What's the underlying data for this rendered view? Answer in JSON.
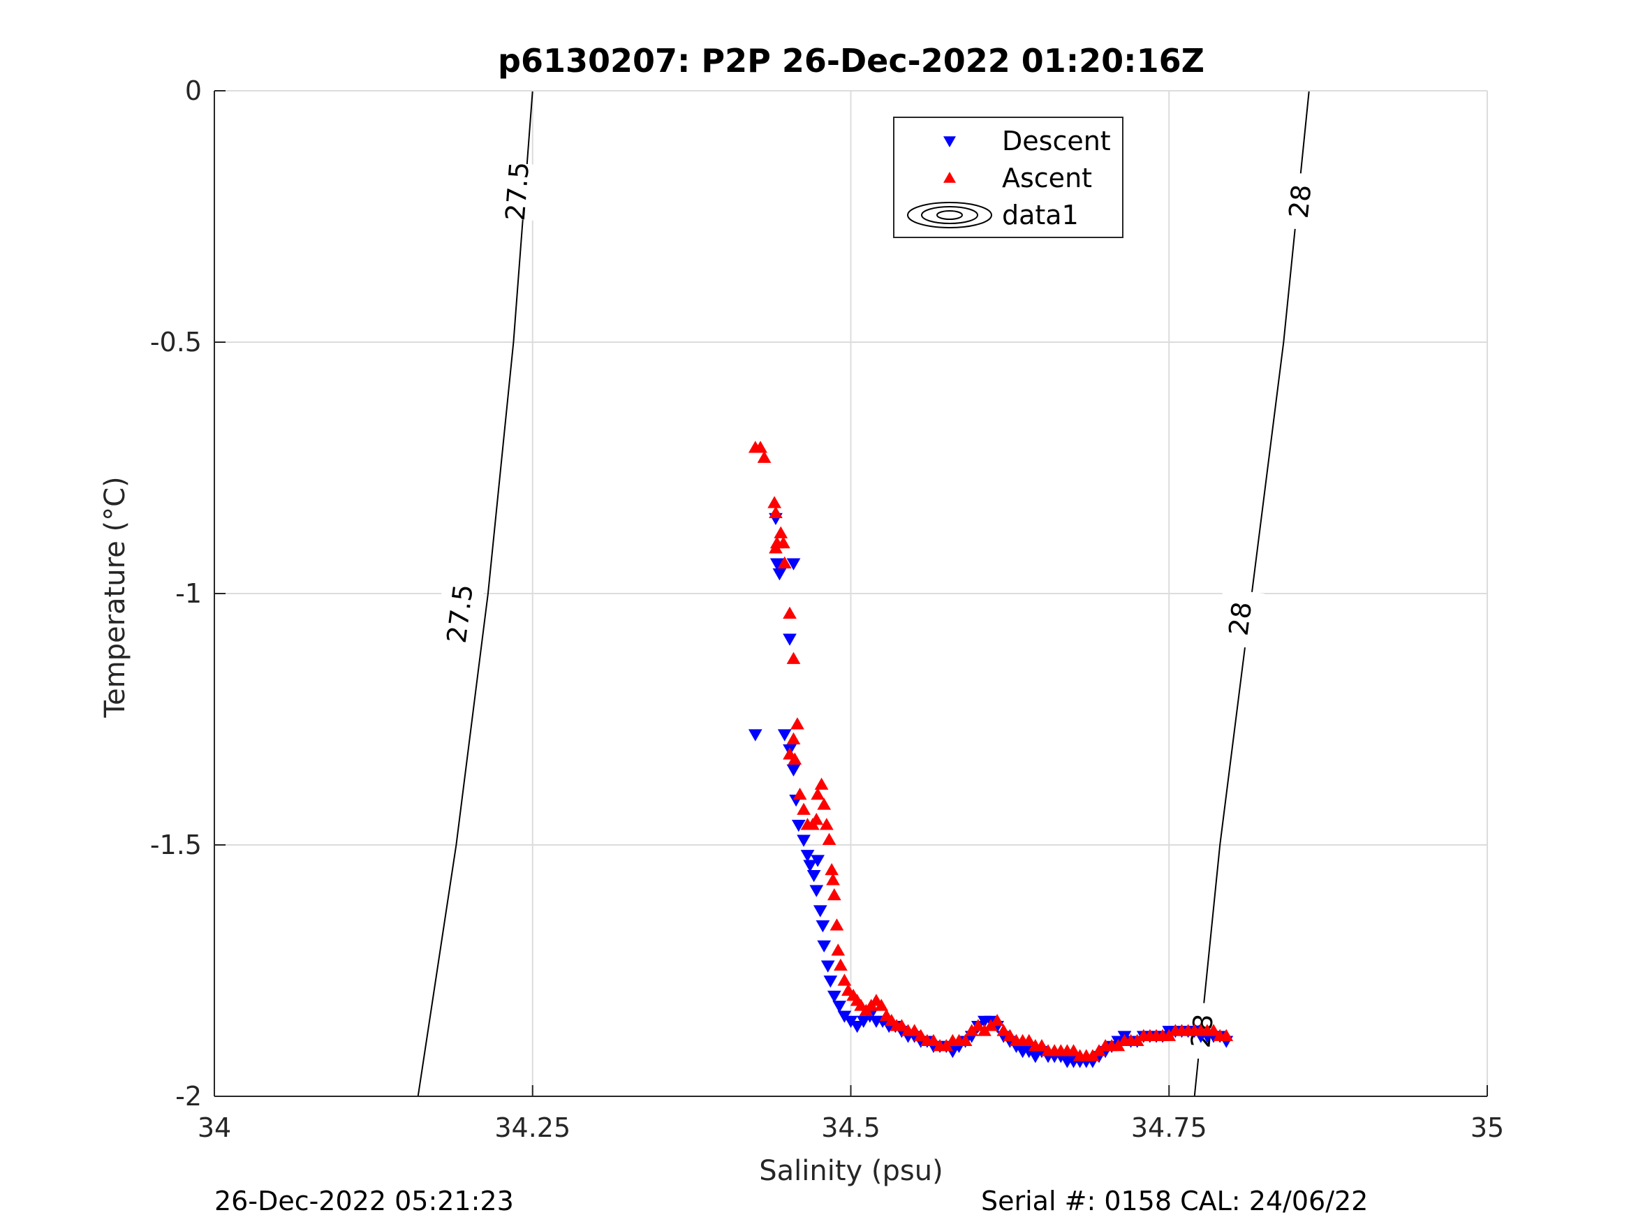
{
  "colors": {
    "descent": "#0000ff",
    "ascent": "#ff0000",
    "grid": "#dcdcdc",
    "axis": "#262626",
    "contour": "#000000"
  },
  "footer": {
    "datetime": "26-Dec-2022 05:21:23",
    "serial": "Serial #: 0158  CAL: 24/06/22"
  },
  "chart_data": {
    "type": "scatter",
    "title": "p6130207: P2P 26-Dec-2022 01:20:16Z",
    "xlabel": "Salinity (psu)",
    "ylabel": "Temperature (°C)",
    "xlim": [
      34,
      35
    ],
    "ylim": [
      -2,
      0
    ],
    "x_ticks": [
      34,
      34.25,
      34.5,
      34.75,
      35
    ],
    "x_tick_labels": [
      "34",
      "34.25",
      "34.5",
      "34.75",
      "35"
    ],
    "y_ticks": [
      0,
      -0.5,
      -1,
      -1.5,
      -2
    ],
    "y_tick_labels": [
      "0",
      "-0.5",
      "-1",
      "-1.5",
      "-2"
    ],
    "grid": true,
    "legend": {
      "placement": "top-center",
      "entries": [
        {
          "label": "Descent",
          "marker": "triangle-down",
          "color": "#0000ff"
        },
        {
          "label": "Ascent",
          "marker": "triangle-up",
          "color": "#ff0000"
        },
        {
          "label": "data1",
          "marker": "contour"
        }
      ]
    },
    "contours": [
      {
        "level": "27.5",
        "points": [
          [
            34.16,
            -2.0
          ],
          [
            34.19,
            -1.5
          ],
          [
            34.215,
            -1.0
          ],
          [
            34.235,
            -0.5
          ],
          [
            34.25,
            0.0
          ]
        ],
        "labels": [
          {
            "text": "27.5",
            "x": 34.193,
            "y": -1.04
          },
          {
            "text": "27.5",
            "x": 34.238,
            "y": -0.2
          }
        ]
      },
      {
        "level": "28",
        "points": [
          [
            34.77,
            -2.0
          ],
          [
            34.79,
            -1.5
          ],
          [
            34.815,
            -1.0
          ],
          [
            34.84,
            -0.5
          ],
          [
            34.86,
            0.0
          ]
        ],
        "labels": [
          {
            "text": "28",
            "x": 34.776,
            "y": -1.87
          },
          {
            "text": "28",
            "x": 34.806,
            "y": -1.05
          },
          {
            "text": "28",
            "x": 34.853,
            "y": -0.22
          }
        ]
      }
    ],
    "series": [
      {
        "name": "Descent",
        "marker": "triangle-down",
        "color": "#0000ff",
        "points": [
          [
            34.425,
            -1.28
          ],
          [
            34.441,
            -0.85
          ],
          [
            34.442,
            -0.94
          ],
          [
            34.444,
            -0.96
          ],
          [
            34.455,
            -0.94
          ],
          [
            34.452,
            -1.09
          ],
          [
            34.448,
            -1.28
          ],
          [
            34.452,
            -1.31
          ],
          [
            34.455,
            -1.35
          ],
          [
            34.457,
            -1.41
          ],
          [
            34.459,
            -1.46
          ],
          [
            34.463,
            -1.49
          ],
          [
            34.466,
            -1.52
          ],
          [
            34.468,
            -1.54
          ],
          [
            34.471,
            -1.56
          ],
          [
            34.474,
            -1.53
          ],
          [
            34.473,
            -1.59
          ],
          [
            34.476,
            -1.63
          ],
          [
            34.478,
            -1.66
          ],
          [
            34.479,
            -1.7
          ],
          [
            34.482,
            -1.74
          ],
          [
            34.484,
            -1.77
          ],
          [
            34.487,
            -1.8
          ],
          [
            34.491,
            -1.82
          ],
          [
            34.495,
            -1.84
          ],
          [
            34.5,
            -1.85
          ],
          [
            34.505,
            -1.86
          ],
          [
            34.51,
            -1.85
          ],
          [
            34.515,
            -1.84
          ],
          [
            34.52,
            -1.85
          ],
          [
            34.525,
            -1.85
          ],
          [
            34.53,
            -1.86
          ],
          [
            34.535,
            -1.86
          ],
          [
            34.54,
            -1.87
          ],
          [
            34.545,
            -1.88
          ],
          [
            34.55,
            -1.88
          ],
          [
            34.555,
            -1.89
          ],
          [
            34.56,
            -1.89
          ],
          [
            34.565,
            -1.9
          ],
          [
            34.57,
            -1.9
          ],
          [
            34.575,
            -1.9
          ],
          [
            34.58,
            -1.91
          ],
          [
            34.585,
            -1.9
          ],
          [
            34.59,
            -1.89
          ],
          [
            34.595,
            -1.88
          ],
          [
            34.6,
            -1.86
          ],
          [
            34.605,
            -1.85
          ],
          [
            34.61,
            -1.85
          ],
          [
            34.615,
            -1.86
          ],
          [
            34.62,
            -1.88
          ],
          [
            34.625,
            -1.89
          ],
          [
            34.63,
            -1.9
          ],
          [
            34.635,
            -1.91
          ],
          [
            34.64,
            -1.91
          ],
          [
            34.645,
            -1.92
          ],
          [
            34.65,
            -1.91
          ],
          [
            34.655,
            -1.92
          ],
          [
            34.66,
            -1.92
          ],
          [
            34.665,
            -1.92
          ],
          [
            34.67,
            -1.93
          ],
          [
            34.675,
            -1.93
          ],
          [
            34.68,
            -1.93
          ],
          [
            34.685,
            -1.93
          ],
          [
            34.69,
            -1.93
          ],
          [
            34.695,
            -1.92
          ],
          [
            34.7,
            -1.91
          ],
          [
            34.705,
            -1.9
          ],
          [
            34.71,
            -1.89
          ],
          [
            34.715,
            -1.88
          ],
          [
            34.72,
            -1.89
          ],
          [
            34.725,
            -1.89
          ],
          [
            34.73,
            -1.88
          ],
          [
            34.735,
            -1.88
          ],
          [
            34.74,
            -1.88
          ],
          [
            34.745,
            -1.88
          ],
          [
            34.75,
            -1.87
          ],
          [
            34.755,
            -1.87
          ],
          [
            34.76,
            -1.87
          ],
          [
            34.765,
            -1.87
          ],
          [
            34.77,
            -1.87
          ],
          [
            34.775,
            -1.88
          ],
          [
            34.78,
            -1.88
          ],
          [
            34.785,
            -1.88
          ],
          [
            34.79,
            -1.88
          ],
          [
            34.795,
            -1.89
          ]
        ]
      },
      {
        "name": "Ascent",
        "marker": "triangle-up",
        "color": "#ff0000",
        "points": [
          [
            34.425,
            -0.71
          ],
          [
            34.429,
            -0.71
          ],
          [
            34.432,
            -0.73
          ],
          [
            34.44,
            -0.82
          ],
          [
            34.441,
            -0.84
          ],
          [
            34.442,
            -0.9
          ],
          [
            34.445,
            -0.88
          ],
          [
            34.447,
            -0.9
          ],
          [
            34.441,
            -0.91
          ],
          [
            34.448,
            -0.94
          ],
          [
            34.452,
            -1.04
          ],
          [
            34.455,
            -1.13
          ],
          [
            34.458,
            -1.26
          ],
          [
            34.455,
            -1.29
          ],
          [
            34.452,
            -1.32
          ],
          [
            34.456,
            -1.33
          ],
          [
            34.46,
            -1.4
          ],
          [
            34.463,
            -1.43
          ],
          [
            34.466,
            -1.46
          ],
          [
            34.47,
            -1.46
          ],
          [
            34.473,
            -1.45
          ],
          [
            34.474,
            -1.4
          ],
          [
            34.477,
            -1.38
          ],
          [
            34.479,
            -1.42
          ],
          [
            34.481,
            -1.46
          ],
          [
            34.483,
            -1.49
          ],
          [
            34.485,
            -1.55
          ],
          [
            34.486,
            -1.57
          ],
          [
            34.487,
            -1.6
          ],
          [
            34.489,
            -1.66
          ],
          [
            34.49,
            -1.71
          ],
          [
            34.492,
            -1.74
          ],
          [
            34.495,
            -1.77
          ],
          [
            34.498,
            -1.79
          ],
          [
            34.502,
            -1.8
          ],
          [
            34.505,
            -1.81
          ],
          [
            34.508,
            -1.82
          ],
          [
            34.512,
            -1.83
          ],
          [
            34.516,
            -1.82
          ],
          [
            34.52,
            -1.81
          ],
          [
            34.524,
            -1.82
          ],
          [
            34.528,
            -1.84
          ],
          [
            34.532,
            -1.85
          ],
          [
            34.536,
            -1.86
          ],
          [
            34.54,
            -1.86
          ],
          [
            34.545,
            -1.87
          ],
          [
            34.55,
            -1.87
          ],
          [
            34.555,
            -1.88
          ],
          [
            34.56,
            -1.89
          ],
          [
            34.565,
            -1.89
          ],
          [
            34.57,
            -1.9
          ],
          [
            34.575,
            -1.9
          ],
          [
            34.58,
            -1.89
          ],
          [
            34.585,
            -1.89
          ],
          [
            34.59,
            -1.89
          ],
          [
            34.595,
            -1.87
          ],
          [
            34.6,
            -1.86
          ],
          [
            34.605,
            -1.87
          ],
          [
            34.61,
            -1.86
          ],
          [
            34.615,
            -1.85
          ],
          [
            34.62,
            -1.87
          ],
          [
            34.625,
            -1.88
          ],
          [
            34.63,
            -1.89
          ],
          [
            34.635,
            -1.89
          ],
          [
            34.64,
            -1.89
          ],
          [
            34.645,
            -1.9
          ],
          [
            34.65,
            -1.9
          ],
          [
            34.655,
            -1.91
          ],
          [
            34.66,
            -1.91
          ],
          [
            34.665,
            -1.91
          ],
          [
            34.67,
            -1.91
          ],
          [
            34.675,
            -1.91
          ],
          [
            34.68,
            -1.92
          ],
          [
            34.685,
            -1.92
          ],
          [
            34.69,
            -1.92
          ],
          [
            34.695,
            -1.91
          ],
          [
            34.7,
            -1.9
          ],
          [
            34.705,
            -1.9
          ],
          [
            34.71,
            -1.9
          ],
          [
            34.715,
            -1.89
          ],
          [
            34.72,
            -1.89
          ],
          [
            34.725,
            -1.89
          ],
          [
            34.73,
            -1.88
          ],
          [
            34.735,
            -1.88
          ],
          [
            34.74,
            -1.88
          ],
          [
            34.745,
            -1.88
          ],
          [
            34.75,
            -1.88
          ],
          [
            34.755,
            -1.87
          ],
          [
            34.76,
            -1.87
          ],
          [
            34.765,
            -1.87
          ],
          [
            34.77,
            -1.87
          ],
          [
            34.775,
            -1.87
          ],
          [
            34.78,
            -1.87
          ],
          [
            34.785,
            -1.87
          ],
          [
            34.79,
            -1.88
          ],
          [
            34.795,
            -1.88
          ]
        ]
      }
    ]
  }
}
